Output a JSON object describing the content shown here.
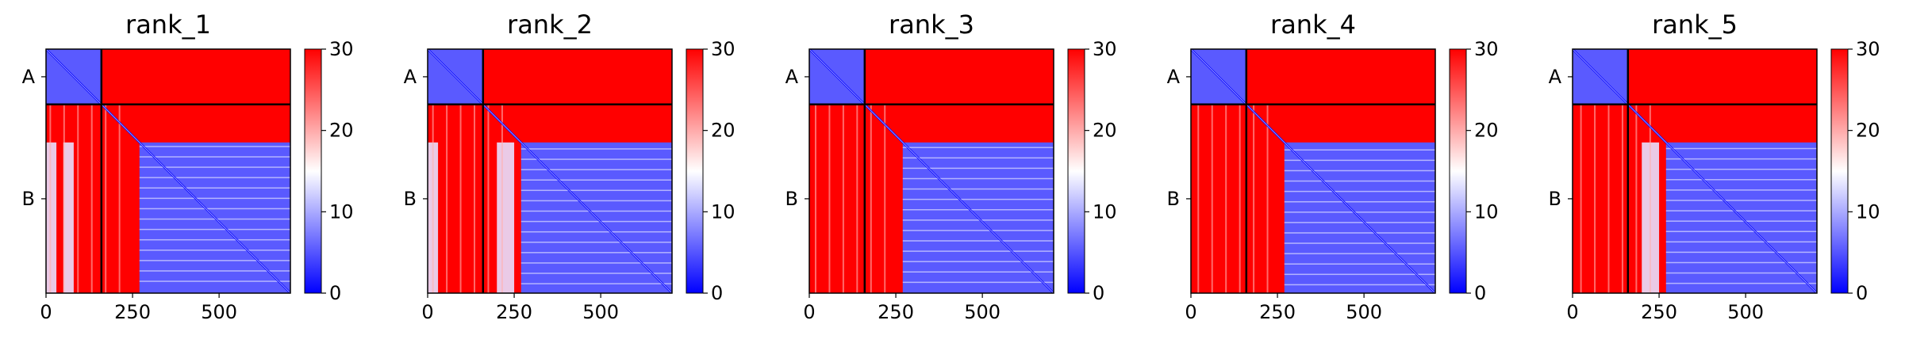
{
  "figure": {
    "panels": [
      {
        "title": "rank_1"
      },
      {
        "title": "rank_2"
      },
      {
        "title": "rank_3"
      },
      {
        "title": "rank_4"
      },
      {
        "title": "rank_5"
      }
    ]
  },
  "chart_data": [
    {
      "type": "heatmap",
      "title": "rank_1",
      "xlabel": "",
      "ylabel": "",
      "xlim": [
        0,
        706
      ],
      "xticks": [
        0,
        250,
        500
      ],
      "ytick_labels": [
        "A",
        "B"
      ],
      "chain_boundary": 160,
      "colorbar": {
        "colormap": "bwr",
        "vmin": 0,
        "vmax": 30,
        "ticks": [
          0,
          10,
          20,
          30
        ]
      },
      "low_error_regions": [
        [
          0,
          160,
          0,
          160
        ],
        [
          270,
          706,
          270,
          706
        ],
        [
          0,
          30,
          270,
          706
        ],
        [
          50,
          80,
          270,
          706
        ]
      ]
    },
    {
      "type": "heatmap",
      "title": "rank_2",
      "xlabel": "",
      "ylabel": "",
      "xlim": [
        0,
        706
      ],
      "xticks": [
        0,
        250,
        500
      ],
      "ytick_labels": [
        "A",
        "B"
      ],
      "chain_boundary": 160,
      "colorbar": {
        "colormap": "bwr",
        "vmin": 0,
        "vmax": 30,
        "ticks": [
          0,
          10,
          20,
          30
        ]
      },
      "low_error_regions": [
        [
          0,
          160,
          0,
          160
        ],
        [
          270,
          706,
          270,
          706
        ],
        [
          0,
          30,
          270,
          706
        ],
        [
          200,
          250,
          270,
          706
        ]
      ]
    },
    {
      "type": "heatmap",
      "title": "rank_3",
      "xlabel": "",
      "ylabel": "",
      "xlim": [
        0,
        706
      ],
      "xticks": [
        0,
        250,
        500
      ],
      "ytick_labels": [
        "A",
        "B"
      ],
      "chain_boundary": 160,
      "colorbar": {
        "colormap": "bwr",
        "vmin": 0,
        "vmax": 30,
        "ticks": [
          0,
          10,
          20,
          30
        ]
      },
      "low_error_regions": [
        [
          0,
          160,
          0,
          160
        ],
        [
          270,
          706,
          270,
          706
        ]
      ]
    },
    {
      "type": "heatmap",
      "title": "rank_4",
      "xlabel": "",
      "ylabel": "",
      "xlim": [
        0,
        706
      ],
      "xticks": [
        0,
        250,
        500
      ],
      "ytick_labels": [
        "A",
        "B"
      ],
      "chain_boundary": 160,
      "colorbar": {
        "colormap": "bwr",
        "vmin": 0,
        "vmax": 30,
        "ticks": [
          0,
          10,
          20,
          30
        ]
      },
      "low_error_regions": [
        [
          0,
          160,
          0,
          160
        ],
        [
          270,
          706,
          270,
          706
        ]
      ]
    },
    {
      "type": "heatmap",
      "title": "rank_5",
      "xlabel": "",
      "ylabel": "",
      "xlim": [
        0,
        706
      ],
      "xticks": [
        0,
        250,
        500
      ],
      "ytick_labels": [
        "A",
        "B"
      ],
      "chain_boundary": 160,
      "colorbar": {
        "colormap": "bwr",
        "vmin": 0,
        "vmax": 30,
        "ticks": [
          0,
          10,
          20,
          30
        ]
      },
      "low_error_regions": [
        [
          0,
          160,
          0,
          160
        ],
        [
          270,
          706,
          270,
          706
        ],
        [
          200,
          250,
          270,
          706
        ]
      ]
    }
  ]
}
